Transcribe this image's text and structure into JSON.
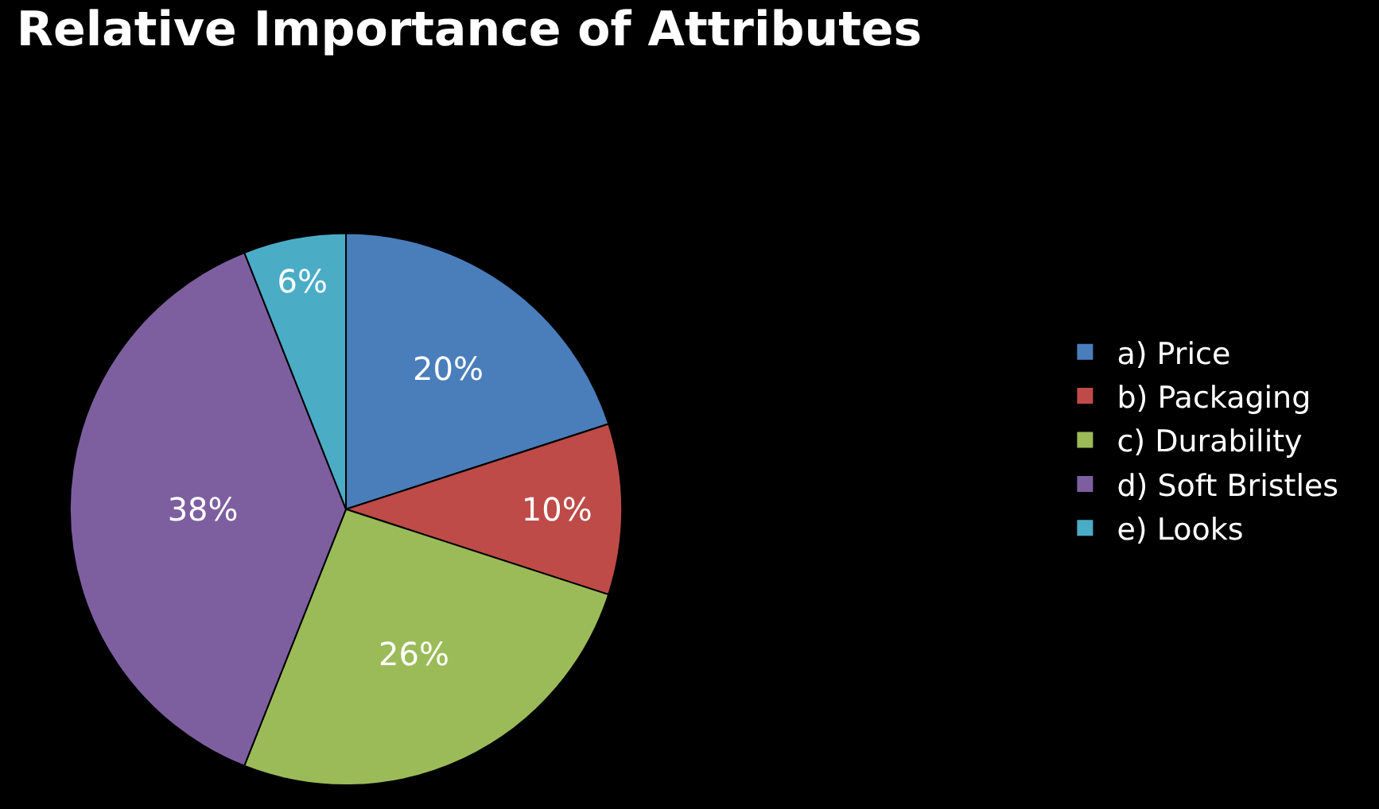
{
  "chart_data": {
    "type": "pie",
    "title": "Relative Importance of Attributes",
    "categories": [
      "a) Price",
      "b) Packaging",
      "c) Durability",
      "d) Soft Bristles",
      "e) Looks"
    ],
    "values": [
      20,
      10,
      26,
      38,
      6
    ],
    "value_labels": [
      "20%",
      "10%",
      "26%",
      "38%",
      "6%"
    ],
    "colors": [
      "#4a7ebb",
      "#be4b48",
      "#9bbb59",
      "#7d5fa0",
      "#4bacc6"
    ],
    "legend": "right"
  }
}
